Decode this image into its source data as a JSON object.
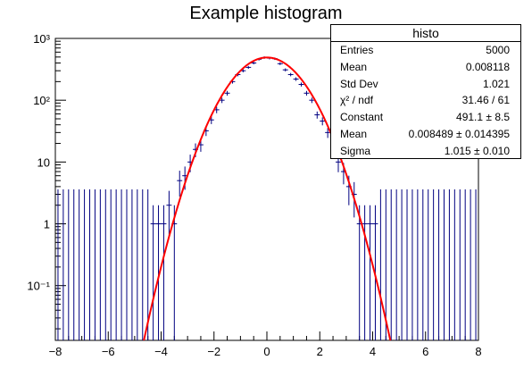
{
  "chart_data": {
    "type": "histogram",
    "title": "Example histogram",
    "xlabel": "",
    "ylabel": "",
    "xlim": [
      -8,
      8
    ],
    "ylim": [
      0.013,
      1000
    ],
    "yscale": "log",
    "xticks": [
      "−8",
      "−6",
      "−4",
      "−2",
      "0",
      "2",
      "4",
      "6",
      "8"
    ],
    "yticks": [
      "10³",
      "10²",
      "10",
      "1",
      "10⁻¹"
    ],
    "bins": {
      "low": -8,
      "high": 8,
      "count": 80,
      "centers_nonzero": [
        -4.3,
        -4.1,
        -3.9,
        -3.7,
        -3.5,
        -3.3,
        -3.1,
        -2.9,
        -2.7,
        -2.5,
        -2.3,
        -2.1,
        -1.9,
        -1.7,
        -1.5,
        -1.3,
        -1.1,
        -0.9,
        -0.7,
        -0.5,
        -0.3,
        -0.1,
        0.1,
        0.3,
        0.5,
        0.7,
        0.9,
        1.1,
        1.3,
        1.5,
        1.7,
        1.9,
        2.1,
        2.3,
        2.5,
        2.7,
        2.9,
        3.1,
        3.3,
        3.5,
        3.7,
        3.9,
        4.1
      ],
      "contents": [
        1,
        1,
        1,
        2,
        1,
        5,
        6,
        10,
        16,
        19,
        32,
        48,
        70,
        100,
        130,
        200,
        260,
        300,
        340,
        400,
        460,
        490,
        480,
        470,
        390,
        310,
        260,
        220,
        180,
        130,
        100,
        58,
        46,
        30,
        20,
        10,
        7,
        4,
        3,
        1,
        1,
        1,
        1
      ]
    },
    "fit": {
      "function": "gaus",
      "constant": 491.1,
      "mean": 0.008489,
      "sigma": 1.015,
      "color": "#ff0000"
    },
    "histogram_color": "#000080",
    "grid": false
  },
  "stats": {
    "name": "histo",
    "rows": [
      {
        "label": "Entries",
        "value": "5000"
      },
      {
        "label": "Mean",
        "value": "0.008118"
      },
      {
        "label": "Std Dev",
        "value": "1.021"
      },
      {
        "label": "χ² / ndf",
        "value": "31.46 / 61"
      },
      {
        "label": "Constant",
        "value": "491.1 ± 8.5"
      },
      {
        "label": "Mean",
        "value": "0.008489 ± 0.014395"
      },
      {
        "label": "Sigma",
        "value": "1.015 ± 0.010"
      }
    ]
  }
}
